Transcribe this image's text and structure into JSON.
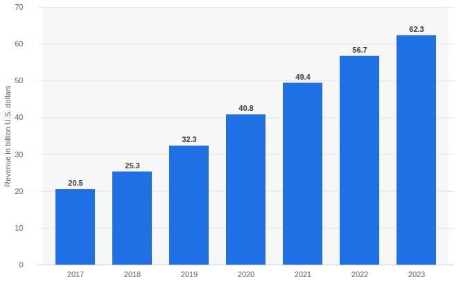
{
  "chart_data": {
    "type": "bar",
    "y_label": "Revenue in billion U.S. dollars",
    "categories": [
      "2017",
      "2018",
      "2019",
      "2020",
      "2021",
      "2022",
      "2023"
    ],
    "values": [
      20.5,
      25.3,
      32.3,
      40.8,
      49.4,
      56.7,
      62.3
    ],
    "color": "#1f6fe5",
    "ylim": [
      0,
      70
    ],
    "yticks": [
      0,
      10,
      20,
      30,
      40,
      50,
      60,
      70
    ],
    "grid": true,
    "data_labels": true
  }
}
